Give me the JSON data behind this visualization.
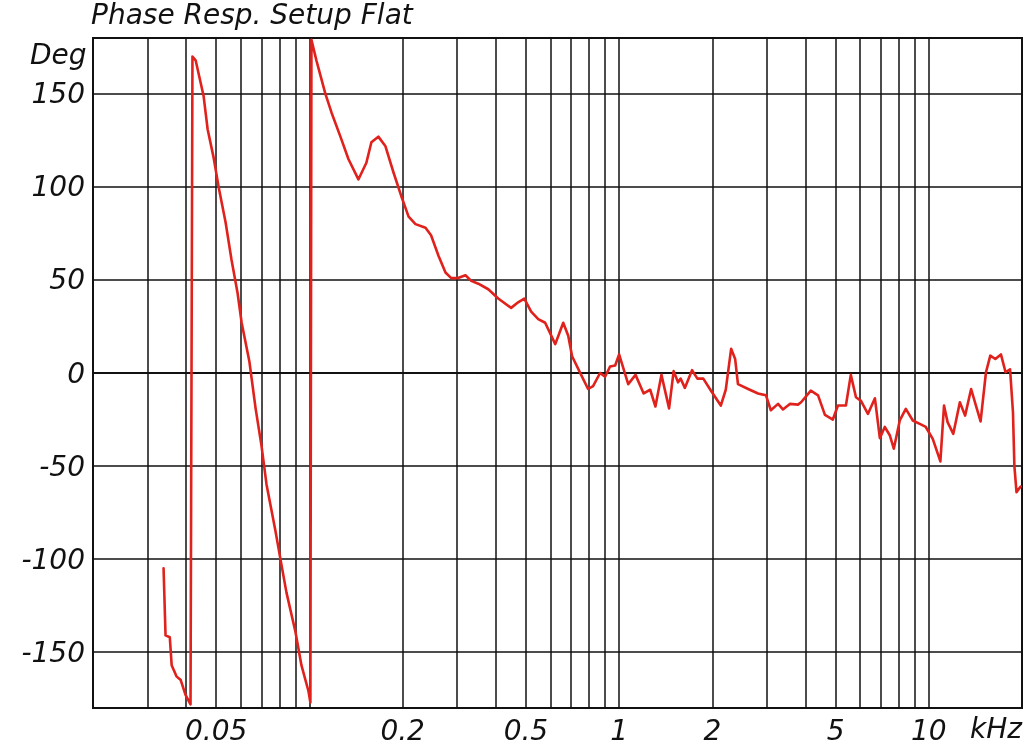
{
  "chart_data": {
    "type": "line",
    "title": "Phase Resp. Setup Flat",
    "xlabel": "kHz",
    "ylabel": "Deg",
    "xlim": [
      0.02,
      20
    ],
    "ylim": [
      -180,
      180
    ],
    "xticks": [
      {
        "value": 0.03,
        "label": null
      },
      {
        "value": 0.04,
        "label": null
      },
      0.05,
      {
        "value": 0.06,
        "label": null
      },
      {
        "value": 0.07,
        "label": null
      },
      {
        "value": 0.08,
        "label": null
      },
      {
        "value": 0.09,
        "label": null
      },
      {
        "value": 0.1,
        "label": null
      },
      0.2,
      {
        "value": 0.3,
        "label": null
      },
      {
        "value": 0.4,
        "label": null
      },
      0.5,
      {
        "value": 0.6,
        "label": null
      },
      {
        "value": 0.7,
        "label": null
      },
      {
        "value": 0.8,
        "label": null
      },
      {
        "value": 0.9,
        "label": null
      },
      1,
      2,
      {
        "value": 3,
        "label": null
      },
      {
        "value": 4,
        "label": null
      },
      5,
      {
        "value": 6,
        "label": null
      },
      {
        "value": 7,
        "label": null
      },
      {
        "value": 8,
        "label": null
      },
      {
        "value": 9,
        "label": null
      },
      10
    ],
    "yticks": [
      -150,
      -100,
      -50,
      0,
      50,
      100,
      150
    ],
    "log": "x",
    "grid": true,
    "line_style": "solid",
    "series": [
      {
        "color": "#e0211c",
        "x": [
          0.0338,
          0.0343,
          0.0354,
          0.0359,
          0.0372,
          0.0384,
          0.0398,
          0.0413,
          0.0419,
          0.0429,
          0.0455,
          0.0469,
          0.049,
          0.0509,
          0.0536,
          0.056,
          0.0586,
          0.0604,
          0.064,
          0.067,
          0.07,
          0.0727,
          0.0777,
          0.0806,
          0.0843,
          0.0901,
          0.0942,
          0.0993,
          0.1007,
          0.1015,
          0.1053,
          0.1126,
          0.1178,
          0.1259,
          0.1336,
          0.1439,
          0.1527,
          0.1585,
          0.1669,
          0.1758,
          0.1866,
          0.198,
          0.209,
          0.22,
          0.237,
          0.247,
          0.261,
          0.275,
          0.287,
          0.302,
          0.319,
          0.333,
          0.351,
          0.378,
          0.407,
          0.448,
          0.472,
          0.494,
          0.52,
          0.548,
          0.577,
          0.622,
          0.66,
          0.685,
          0.705,
          0.754,
          0.794,
          0.824,
          0.868,
          0.901,
          0.935,
          0.971,
          1.0,
          1.07,
          1.13,
          1.2,
          1.26,
          1.31,
          1.37,
          1.45,
          1.5,
          1.55,
          1.58,
          1.63,
          1.72,
          1.79,
          1.87,
          1.98,
          2.13,
          2.21,
          2.3,
          2.37,
          2.42,
          2.61,
          2.81,
          2.98,
          3.09,
          3.26,
          3.38,
          3.56,
          3.78,
          3.87,
          4.16,
          4.39,
          4.62,
          4.9,
          5.09,
          5.4,
          5.6,
          5.82,
          6.04,
          6.36,
          6.7,
          6.95,
          7.21,
          7.49,
          7.71,
          8.06,
          8.43,
          8.88,
          9.35,
          9.78,
          10.3,
          10.9,
          11.2,
          11.5,
          12.0,
          12.6,
          13.1,
          13.7,
          14.2,
          14.7,
          15.3,
          15.8,
          16.4,
          17.1,
          17.7,
          18.3,
          18.7,
          18.9,
          19.2,
          19.8
        ],
        "values": [
          -105,
          -141,
          -142,
          -157,
          -163,
          -165,
          -173,
          -178,
          170,
          168,
          149,
          131,
          116,
          100,
          81,
          61,
          43,
          27,
          6,
          -19,
          -39,
          -60,
          -85,
          -100,
          -118,
          -139,
          -157,
          -171,
          -177,
          179,
          168,
          150,
          140,
          127,
          115,
          104,
          113,
          124,
          127,
          122,
          108,
          95,
          84,
          80,
          78,
          74,
          63,
          54,
          51,
          51,
          52.5,
          49.5,
          48,
          45,
          40,
          35,
          38,
          40,
          33,
          29,
          27,
          15.5,
          27,
          20,
          9,
          -1,
          -8.6,
          -7,
          0,
          -2,
          3.5,
          4,
          10,
          -6,
          -1,
          -11,
          -9,
          -18,
          -1,
          -19,
          1,
          -5,
          -3,
          -8,
          1.5,
          -3,
          -3,
          -9.5,
          -17.5,
          -9,
          13,
          7.5,
          -6,
          -8.6,
          -11,
          -12,
          -20,
          -16.6,
          -19.6,
          -16.6,
          -17,
          -15.7,
          -9.5,
          -12,
          -22.5,
          -25,
          -17.5,
          -17.5,
          -1,
          -13,
          -15,
          -22,
          -13.6,
          -35,
          -29,
          -33.6,
          -40.7,
          -25.5,
          -19.3,
          -25.5,
          -27.3,
          -29,
          -35.4,
          -47.5,
          -17.5,
          -26.4,
          -32.7,
          -15.7,
          -22.9,
          -8.6,
          -17.5,
          -26,
          0.4,
          9.3,
          7.5,
          10,
          0.4,
          2,
          -21,
          -50,
          -64,
          -61
        ]
      }
    ]
  }
}
